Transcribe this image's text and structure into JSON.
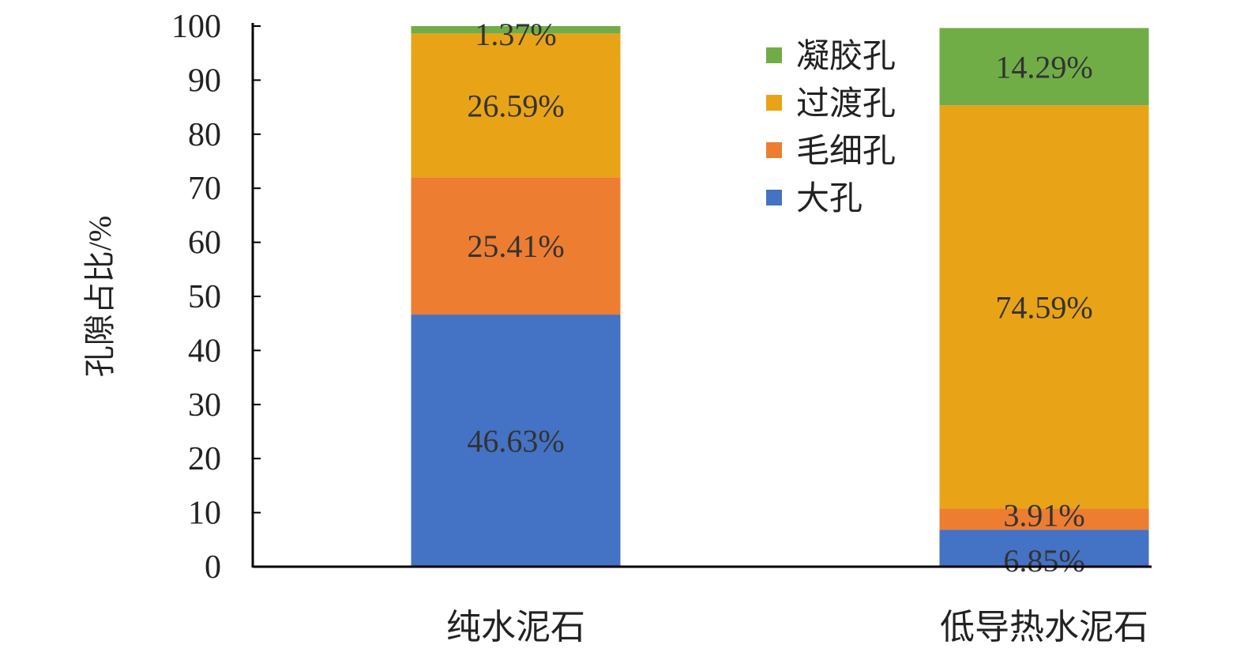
{
  "chart_data": {
    "type": "bar",
    "stacked": true,
    "title": "",
    "xlabel": "",
    "ylabel": "孔隙占比/%",
    "ylim": [
      0,
      100
    ],
    "yticks": [
      0,
      10,
      20,
      30,
      40,
      50,
      60,
      70,
      80,
      90,
      100
    ],
    "grid": false,
    "legend_position": "top-right",
    "categories": [
      "纯水泥石",
      "低导热水泥石"
    ],
    "series": [
      {
        "name": "大孔",
        "color": "#4472C4",
        "values": [
          46.63,
          6.85
        ],
        "labels": [
          "46.63%",
          "6.85%"
        ]
      },
      {
        "name": "毛细孔",
        "color": "#ED7D31",
        "values": [
          25.41,
          3.91
        ],
        "labels": [
          "25.41%",
          "3.91%"
        ]
      },
      {
        "name": "过渡孔",
        "color": "#E8A317",
        "values": [
          26.59,
          74.59
        ],
        "labels": [
          "26.59%",
          "74.59%"
        ]
      },
      {
        "name": "凝胶孔",
        "color": "#70AD47",
        "values": [
          1.37,
          14.29
        ],
        "labels": [
          "1.37%",
          "14.29%"
        ]
      }
    ],
    "legend_order": [
      "凝胶孔",
      "过渡孔",
      "毛细孔",
      "大孔"
    ]
  }
}
